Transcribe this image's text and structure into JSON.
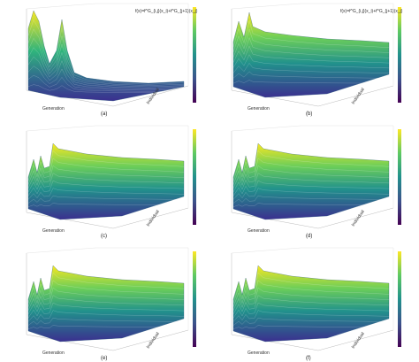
{
  "panels": [
    {
      "label": "(a)",
      "formula": "f(x)=f^G_{i,j}(x_i)+f^G_{j+1}(x_j)",
      "x_label": "Generation",
      "y_label": "Individual"
    },
    {
      "label": "(b)",
      "formula": "f(x)=f^G_{i,j}(x_i)+f^G_{j+1}(x_j)",
      "x_label": "Generation",
      "y_label": "Individual"
    },
    {
      "label": "(c)",
      "x_label": "Generation",
      "y_label": "Individual"
    },
    {
      "label": "(d)",
      "x_label": "Generation",
      "y_label": "Individual"
    },
    {
      "label": "(e)",
      "x_label": "Generation",
      "y_label": "Individual"
    },
    {
      "label": "(f)",
      "x_label": "Generation",
      "y_label": "Individual"
    }
  ]
}
